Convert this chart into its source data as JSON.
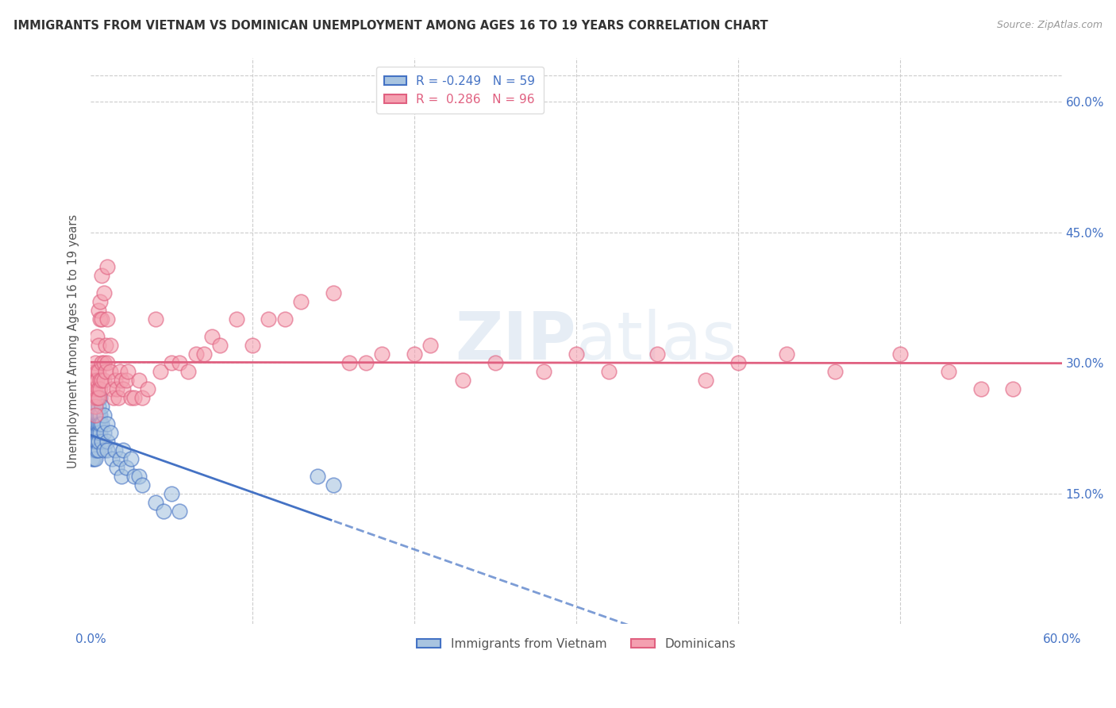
{
  "title": "IMMIGRANTS FROM VIETNAM VS DOMINICAN UNEMPLOYMENT AMONG AGES 16 TO 19 YEARS CORRELATION CHART",
  "source": "Source: ZipAtlas.com",
  "ylabel": "Unemployment Among Ages 16 to 19 years",
  "right_yticks": [
    "60.0%",
    "45.0%",
    "30.0%",
    "15.0%"
  ],
  "right_ytick_vals": [
    0.6,
    0.45,
    0.3,
    0.15
  ],
  "xmin": 0.0,
  "xmax": 0.6,
  "ymin": 0.0,
  "ymax": 0.65,
  "color_vietnam": "#a8c4e0",
  "color_dominican": "#f4a0b0",
  "color_vietnam_line": "#4472c4",
  "color_dominican_line": "#e06080",
  "watermark": "ZIPatlas",
  "vietnam_x": [
    0.001,
    0.001,
    0.001,
    0.002,
    0.002,
    0.002,
    0.002,
    0.002,
    0.002,
    0.003,
    0.003,
    0.003,
    0.003,
    0.003,
    0.003,
    0.003,
    0.004,
    0.004,
    0.004,
    0.004,
    0.004,
    0.005,
    0.005,
    0.005,
    0.005,
    0.005,
    0.005,
    0.006,
    0.006,
    0.006,
    0.006,
    0.007,
    0.007,
    0.007,
    0.008,
    0.008,
    0.008,
    0.01,
    0.01,
    0.01,
    0.012,
    0.013,
    0.015,
    0.016,
    0.018,
    0.019,
    0.02,
    0.022,
    0.025,
    0.027,
    0.03,
    0.032,
    0.04,
    0.045,
    0.05,
    0.055,
    0.14,
    0.15
  ],
  "vietnam_y": [
    0.19,
    0.21,
    0.23,
    0.2,
    0.22,
    0.24,
    0.25,
    0.21,
    0.19,
    0.22,
    0.2,
    0.23,
    0.25,
    0.26,
    0.21,
    0.19,
    0.22,
    0.24,
    0.23,
    0.2,
    0.21,
    0.25,
    0.23,
    0.22,
    0.24,
    0.2,
    0.21,
    0.26,
    0.24,
    0.22,
    0.23,
    0.25,
    0.23,
    0.21,
    0.24,
    0.22,
    0.2,
    0.23,
    0.21,
    0.2,
    0.22,
    0.19,
    0.2,
    0.18,
    0.19,
    0.17,
    0.2,
    0.18,
    0.19,
    0.17,
    0.17,
    0.16,
    0.14,
    0.13,
    0.15,
    0.13,
    0.17,
    0.16
  ],
  "dominican_x": [
    0.001,
    0.001,
    0.002,
    0.002,
    0.002,
    0.003,
    0.003,
    0.003,
    0.003,
    0.003,
    0.004,
    0.004,
    0.004,
    0.004,
    0.005,
    0.005,
    0.005,
    0.005,
    0.005,
    0.006,
    0.006,
    0.006,
    0.006,
    0.007,
    0.007,
    0.007,
    0.007,
    0.008,
    0.008,
    0.008,
    0.009,
    0.009,
    0.01,
    0.01,
    0.01,
    0.012,
    0.012,
    0.013,
    0.014,
    0.015,
    0.016,
    0.017,
    0.018,
    0.019,
    0.02,
    0.022,
    0.023,
    0.025,
    0.027,
    0.03,
    0.032,
    0.035,
    0.04,
    0.043,
    0.05,
    0.055,
    0.06,
    0.065,
    0.07,
    0.075,
    0.08,
    0.09,
    0.1,
    0.11,
    0.12,
    0.13,
    0.15,
    0.16,
    0.17,
    0.18,
    0.2,
    0.21,
    0.23,
    0.25,
    0.28,
    0.3,
    0.32,
    0.35,
    0.38,
    0.4,
    0.43,
    0.46,
    0.5,
    0.53,
    0.55,
    0.57
  ],
  "dominican_y": [
    0.27,
    0.28,
    0.29,
    0.27,
    0.26,
    0.3,
    0.28,
    0.27,
    0.25,
    0.24,
    0.33,
    0.29,
    0.28,
    0.26,
    0.36,
    0.32,
    0.29,
    0.27,
    0.26,
    0.37,
    0.35,
    0.28,
    0.27,
    0.4,
    0.35,
    0.3,
    0.28,
    0.38,
    0.3,
    0.28,
    0.32,
    0.29,
    0.41,
    0.35,
    0.3,
    0.32,
    0.29,
    0.27,
    0.26,
    0.28,
    0.27,
    0.26,
    0.29,
    0.28,
    0.27,
    0.28,
    0.29,
    0.26,
    0.26,
    0.28,
    0.26,
    0.27,
    0.35,
    0.29,
    0.3,
    0.3,
    0.29,
    0.31,
    0.31,
    0.33,
    0.32,
    0.35,
    0.32,
    0.35,
    0.35,
    0.37,
    0.38,
    0.3,
    0.3,
    0.31,
    0.31,
    0.32,
    0.28,
    0.3,
    0.29,
    0.31,
    0.29,
    0.31,
    0.28,
    0.3,
    0.31,
    0.29,
    0.31,
    0.29,
    0.27,
    0.27
  ]
}
